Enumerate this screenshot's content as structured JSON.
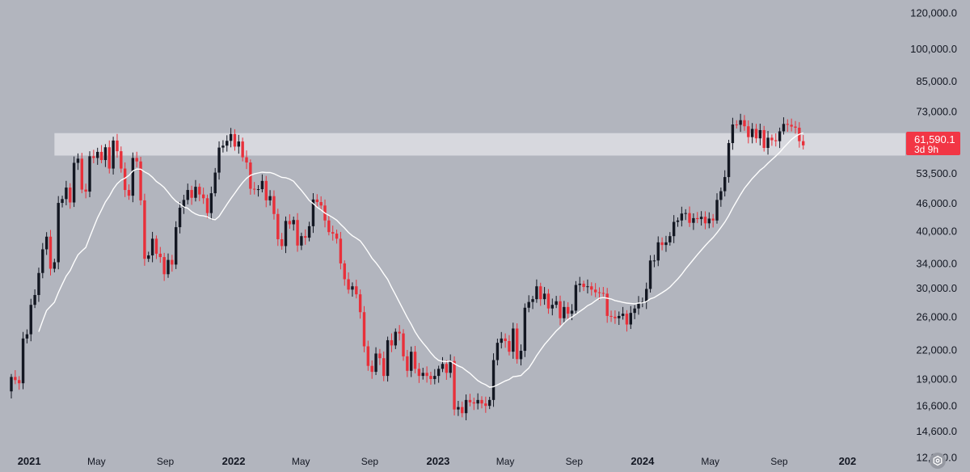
{
  "chart_data": {
    "type": "candlestick",
    "interval_weeks": 1,
    "start_date": "2020-11-30",
    "y_scale": "log",
    "ylim": [
      11900,
      128000
    ],
    "y_ticks": [
      {
        "value": 12800,
        "label": "12,800.0"
      },
      {
        "value": 14600,
        "label": "14,600.0"
      },
      {
        "value": 16600,
        "label": "16,600.0"
      },
      {
        "value": 19000,
        "label": "19,000.0"
      },
      {
        "value": 22000,
        "label": "22,000.0"
      },
      {
        "value": 26000,
        "label": "26,000.0"
      },
      {
        "value": 30000,
        "label": "30,000.0"
      },
      {
        "value": 34000,
        "label": "34,000.0"
      },
      {
        "value": 40000,
        "label": "40,000.0"
      },
      {
        "value": 46000,
        "label": "46,000.0"
      },
      {
        "value": 53500,
        "label": "53,500.0"
      },
      {
        "value": 73000,
        "label": "73,000.0"
      },
      {
        "value": 85000,
        "label": "85,000.0"
      },
      {
        "value": 100000,
        "label": "100,000.0"
      },
      {
        "value": 120000,
        "label": "120,000.0"
      }
    ],
    "x_ticks": [
      {
        "label": "2021",
        "bold": true,
        "date": "2021-01-01"
      },
      {
        "label": "May",
        "bold": false,
        "date": "2021-05-01"
      },
      {
        "label": "Sep",
        "bold": false,
        "date": "2021-09-01"
      },
      {
        "label": "2022",
        "bold": true,
        "date": "2022-01-01"
      },
      {
        "label": "May",
        "bold": false,
        "date": "2022-05-01"
      },
      {
        "label": "Sep",
        "bold": false,
        "date": "2022-09-01"
      },
      {
        "label": "2023",
        "bold": true,
        "date": "2023-01-01"
      },
      {
        "label": "May",
        "bold": false,
        "date": "2023-05-01"
      },
      {
        "label": "Sep",
        "bold": false,
        "date": "2023-09-01"
      },
      {
        "label": "2024",
        "bold": true,
        "date": "2024-01-01"
      },
      {
        "label": "May",
        "bold": false,
        "date": "2024-05-01"
      },
      {
        "label": "Sep",
        "bold": false,
        "date": "2024-09-01"
      },
      {
        "label": "202",
        "bold": true,
        "date": "2025-01-01"
      }
    ],
    "resistance_zone": {
      "low": 58500,
      "high": 65500,
      "start_date": "2021-02-15"
    },
    "last_price": {
      "value": 61590.1,
      "label": "61,590.1",
      "countdown": "3d 9h"
    },
    "colors": {
      "background": "#b2b5be",
      "up": "#131722",
      "down": "#e8303a",
      "zone": "#e3e4e8",
      "ma": "#ffffff",
      "price_tag": "#f23645"
    },
    "closes": [
      19200,
      18900,
      18600,
      23300,
      23800,
      27600,
      29000,
      32400,
      36500,
      38900,
      33100,
      34200,
      46100,
      47000,
      49800,
      46200,
      56400,
      57600,
      49300,
      48800,
      58300,
      57800,
      59600,
      57200,
      61000,
      54800,
      63100,
      59800,
      54800,
      49200,
      47800,
      57800,
      56800,
      46700,
      34800,
      35400,
      38500,
      35700,
      35100,
      32200,
      34600,
      33800,
      40800,
      45000,
      46800,
      49200,
      47300,
      50000,
      48100,
      47200,
      43800,
      48400,
      53700,
      60900,
      61500,
      63000,
      65200,
      61200,
      62800,
      58000,
      56500,
      49500,
      49300,
      49400,
      51500,
      46700,
      47700,
      43600,
      38400,
      37100,
      42100,
      41400,
      42300,
      37200,
      39000,
      38700,
      41000,
      46900,
      46300,
      45500,
      42200,
      39800,
      39500,
      38500,
      34000,
      31400,
      29800,
      30300,
      29100,
      26600,
      22400,
      20300,
      19700,
      21600,
      21100,
      19300,
      23100,
      22500,
      24100,
      23900,
      21300,
      19800,
      21800,
      20000,
      19300,
      19600,
      19300,
      19000,
      19300,
      20000,
      20500,
      19600,
      20800,
      16300,
      16500,
      16000,
      17100,
      16900,
      16800,
      17100,
      16800,
      16600,
      17100,
      20900,
      22800,
      23300,
      23000,
      21800,
      24500,
      21000,
      21900,
      27200,
      28000,
      28400,
      30300,
      28400,
      29200,
      27100,
      27600,
      28100,
      25800,
      27300,
      26400,
      26800,
      30500,
      30700,
      30200,
      30300,
      29800,
      29400,
      29300,
      29200,
      26100,
      26000,
      25800,
      26100,
      26400,
      25000,
      26500,
      27100,
      27900,
      28000,
      29900,
      34500,
      34500,
      37800,
      37300,
      37800,
      39000,
      41900,
      42200,
      43700,
      43800,
      41700,
      42700,
      42500,
      43000,
      41600,
      42600,
      42200,
      46800,
      48900,
      52500,
      62300,
      68400,
      68300,
      69900,
      67800,
      64200,
      66900,
      63800,
      66500,
      60800,
      64000,
      63200,
      62900,
      66100,
      68600,
      68300,
      67700,
      67300,
      62900,
      61590
    ],
    "ma_start_index": 7
  }
}
